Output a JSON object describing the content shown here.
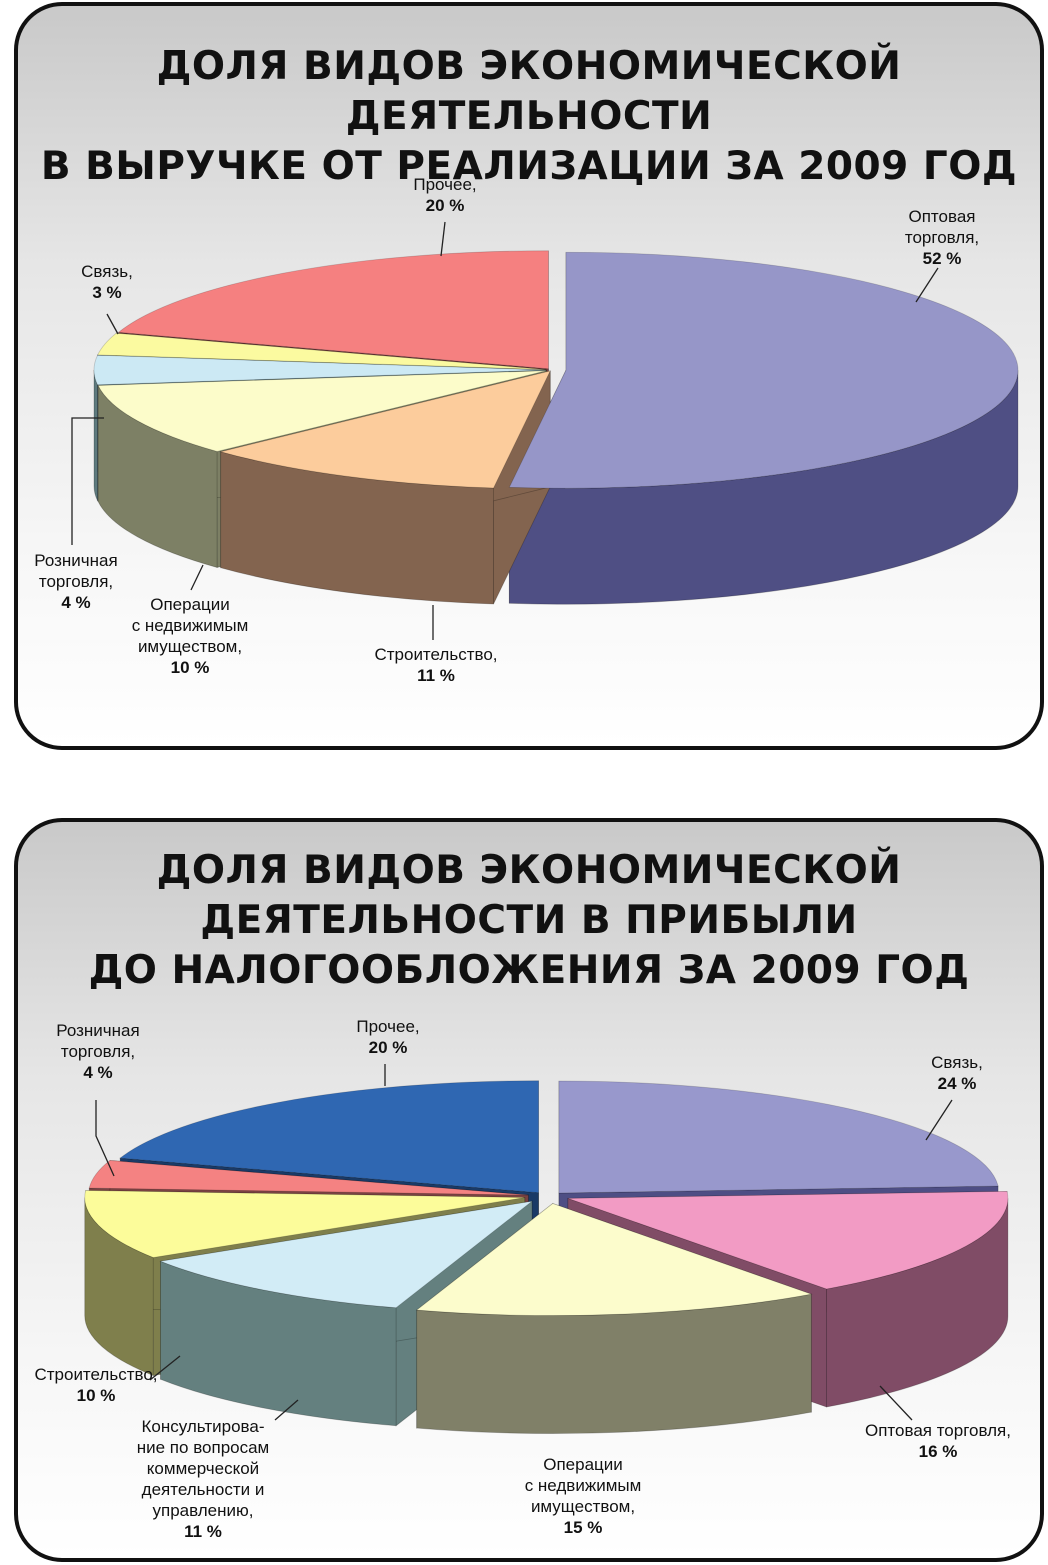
{
  "chart_data": [
    {
      "type": "pie",
      "title_lines": [
        "ДОЛЯ ВИДОВ ЭКОНОМИЧЕСКОЙ ДЕЯТЕЛЬНОСТИ",
        "В ВЫРУЧКЕ ОТ РЕАЛИЗАЦИИ ЗА 2009 ГОД"
      ],
      "slices": [
        {
          "label_lines": [
            "Оптовая",
            "торговля,"
          ],
          "value": 52,
          "value_label": "52 %",
          "top_color": "#9696c8",
          "side_color": "#4f4f84"
        },
        {
          "label_lines": [
            "Строительство,"
          ],
          "value": 11,
          "value_label": "11 %",
          "top_color": "#fccc9c",
          "side_color": "#83644f"
        },
        {
          "label_lines": [
            "Операции",
            "с недвижимым",
            "имуществом,"
          ],
          "value": 10,
          "value_label": "10 %",
          "top_color": "#fcfcca",
          "side_color": "#7d8065"
        },
        {
          "label_lines": [
            "Розничная",
            "торговля,"
          ],
          "value": 4,
          "value_label": "4 %",
          "top_color": "#cce9f4",
          "side_color": "#5e7a7e"
        },
        {
          "label_lines": [
            "Связь,"
          ],
          "value": 3,
          "value_label": "3 %",
          "top_color": "#fbfaa0",
          "side_color": "#7d7d50"
        },
        {
          "label_lines": [
            "Прочее,"
          ],
          "value": 20,
          "value_label": "20 %",
          "top_color": "#f58080",
          "side_color": "#7a4040"
        }
      ]
    },
    {
      "type": "pie",
      "title_lines": [
        "ДОЛЯ ВИДОВ ЭКОНОМИЧЕСКОЙ",
        "ДЕЯТЕЛЬНОСТИ В ПРИБЫЛИ",
        "ДО НАЛОГООБЛОЖЕНИЯ ЗА 2009 ГОД"
      ],
      "slices": [
        {
          "label_lines": [
            "Связь,"
          ],
          "value": 24,
          "value_label": "24 %",
          "top_color": "#9898cc",
          "side_color": "#4e4e84"
        },
        {
          "label_lines": [
            "Оптовая торговля,"
          ],
          "value": 16,
          "value_label": "16 %",
          "top_color": "#f29bc4",
          "side_color": "#804c66"
        },
        {
          "label_lines": [
            "Операции",
            "с недвижимым",
            "имуществом,"
          ],
          "value": 15,
          "value_label": "15 %",
          "top_color": "#fcfccc",
          "side_color": "#808068"
        },
        {
          "label_lines": [
            "Консультирова-",
            "ние по вопросам",
            "коммерческой",
            "деятельности и",
            "управлению,"
          ],
          "value": 11,
          "value_label": "11 %",
          "top_color": "#d2ecf6",
          "side_color": "#64807f"
        },
        {
          "label_lines": [
            "Строительство,"
          ],
          "value": 10,
          "value_label": "10 %",
          "top_color": "#fcfc9a",
          "side_color": "#7f7f4c"
        },
        {
          "label_lines": [
            "Розничная",
            "торговля,"
          ],
          "value": 4,
          "value_label": "4 %",
          "top_color": "#f48282",
          "side_color": "#7a4242"
        },
        {
          "label_lines": [
            "Прочее,"
          ],
          "value": 20,
          "value_label": "20 %",
          "top_color": "#2f67b2",
          "side_color": "#1a3a66"
        }
      ]
    }
  ]
}
